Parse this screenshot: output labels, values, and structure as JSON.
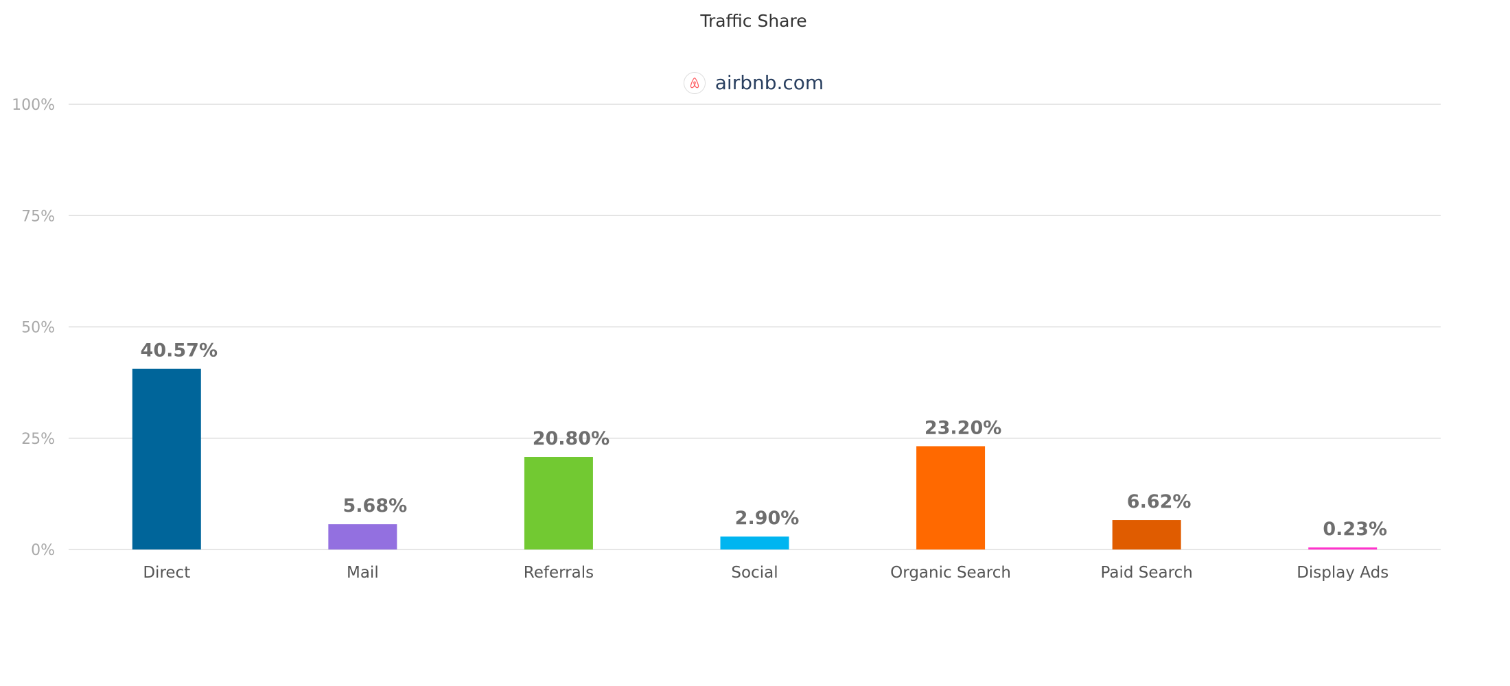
{
  "chart_data": {
    "type": "bar",
    "title": "Traffic Share",
    "legend": {
      "label": "airbnb.com",
      "icon": "airbnb-logo-icon",
      "placement": "top-center"
    },
    "categories": [
      "Direct",
      "Mail",
      "Referrals",
      "Social",
      "Organic Search",
      "Paid Search",
      "Display Ads"
    ],
    "values": [
      40.57,
      5.68,
      20.8,
      2.9,
      23.2,
      6.62,
      0.23
    ],
    "data_labels": [
      "40.57%",
      "5.68%",
      "20.80%",
      "2.90%",
      "23.20%",
      "6.62%",
      "0.23%"
    ],
    "colors": [
      "#00659a",
      "#9370e0",
      "#72c932",
      "#00b5f0",
      "#ff6900",
      "#e05c00",
      "#ff33cc"
    ],
    "ylim": [
      0,
      100
    ],
    "yticks": [
      0,
      25,
      50,
      75,
      100
    ],
    "ytick_labels": [
      "0%",
      "25%",
      "50%",
      "75%",
      "100%"
    ],
    "xlabel": "",
    "ylabel": "",
    "grid": true
  }
}
